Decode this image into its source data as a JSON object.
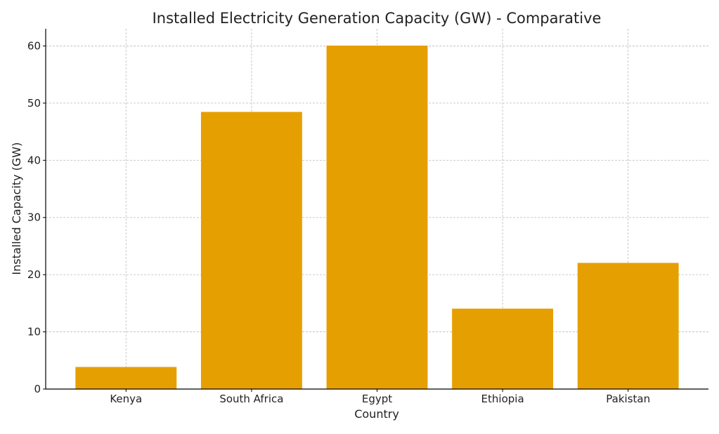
{
  "chart_data": {
    "type": "bar",
    "title": "Installed Electricity Generation Capacity (GW) - Comparative",
    "xlabel": "Country",
    "ylabel": "Installed Capacity (GW)",
    "categories": [
      "Kenya",
      "South Africa",
      "Egypt",
      "Ethiopia",
      "Pakistan"
    ],
    "values": [
      3.8,
      48.4,
      60,
      14,
      22
    ],
    "ylim": [
      0,
      63
    ],
    "yticks": [
      0,
      10,
      20,
      30,
      40,
      50,
      60
    ],
    "grid": true,
    "bar_color": "#E69F00"
  }
}
